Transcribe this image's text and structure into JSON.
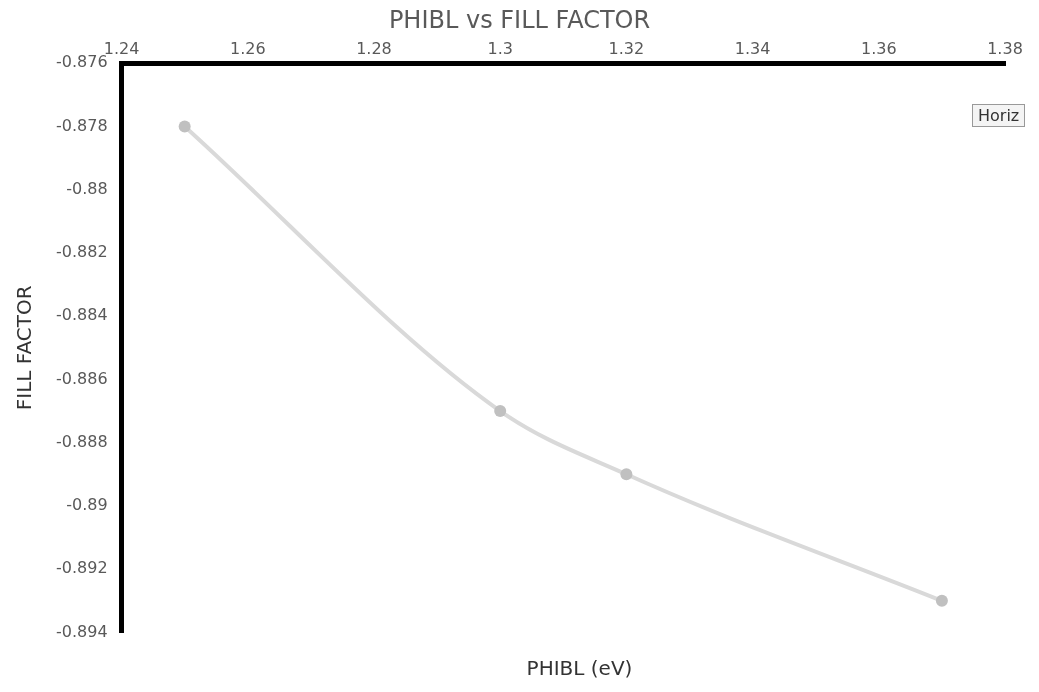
{
  "chart_data": {
    "type": "line",
    "title": "PHIBL vs FILL FACTOR",
    "xlabel": "PHIBL (eV)",
    "ylabel": "FILL FACTOR",
    "x": [
      1.25,
      1.3,
      1.32,
      1.37
    ],
    "series": [
      {
        "color": "#d9d9d9",
        "values": [
          -0.878,
          -0.887,
          -0.889,
          -0.893
        ]
      }
    ],
    "xlim": [
      1.24,
      1.38
    ],
    "xticks": [
      1.24,
      1.26,
      1.28,
      1.3,
      1.32,
      1.34,
      1.36,
      1.38
    ],
    "ylim": [
      -0.894,
      -0.876
    ],
    "yticks": [
      -0.894,
      -0.892,
      -0.89,
      -0.888,
      -0.886,
      -0.884,
      -0.882,
      -0.88,
      -0.878,
      -0.876
    ],
    "grid": false,
    "legend": false,
    "marker": "circle",
    "line_style": "solid",
    "annotations": [
      "Horiz"
    ]
  }
}
